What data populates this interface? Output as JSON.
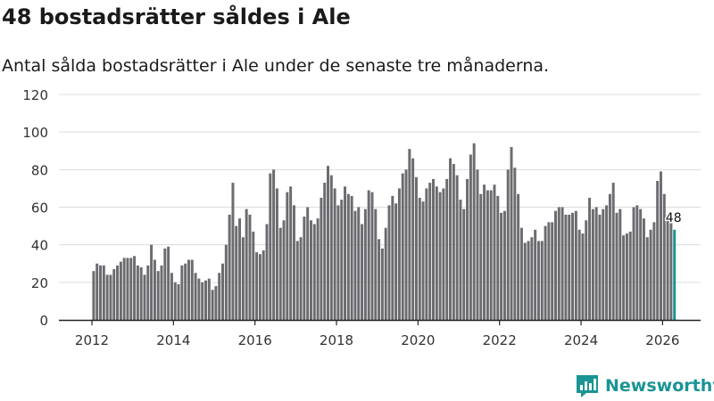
{
  "title": "48 bostadsrätter såldes i Ale",
  "subtitle": "Antal sålda bostadsrätter i Ale under de senaste tre månaderna.",
  "brand": {
    "name": "Newsworthy",
    "icon": "newsworthy-logo-icon",
    "color": "#1b9494"
  },
  "colors": {
    "bar": "#6b6b70",
    "highlight": "#1b9494",
    "grid": "#dcdcdc",
    "axis": "#222222",
    "text": "#333333"
  },
  "chart_data": {
    "type": "bar",
    "title": "48 bostadsrätter såldes i Ale",
    "xlabel": "",
    "ylabel": "",
    "ylim": [
      0,
      120
    ],
    "yticks": [
      0,
      20,
      40,
      60,
      80,
      100,
      120
    ],
    "xticks": [
      2012,
      2014,
      2016,
      2018,
      2020,
      2022,
      2024,
      2026
    ],
    "start": {
      "year": 2012,
      "month": 1
    },
    "frequency": "monthly",
    "highlight_label": "48",
    "grid": true,
    "legend": "none",
    "values": [
      26,
      30,
      29,
      29,
      24,
      24,
      27,
      29,
      31,
      33,
      33,
      33,
      34,
      29,
      28,
      24,
      29,
      40,
      32,
      26,
      29,
      38,
      39,
      25,
      20,
      19,
      29,
      30,
      32,
      32,
      25,
      22,
      20,
      21,
      22,
      16,
      18,
      25,
      30,
      40,
      56,
      73,
      50,
      54,
      44,
      59,
      56,
      47,
      36,
      35,
      37,
      51,
      78,
      80,
      70,
      49,
      53,
      68,
      71,
      61,
      42,
      44,
      55,
      60,
      53,
      51,
      54,
      65,
      73,
      82,
      77,
      70,
      61,
      64,
      71,
      67,
      66,
      58,
      60,
      51,
      59,
      69,
      68,
      59,
      43,
      38,
      49,
      61,
      66,
      62,
      70,
      78,
      80,
      91,
      86,
      76,
      65,
      63,
      70,
      73,
      75,
      71,
      68,
      70,
      75,
      86,
      83,
      77,
      64,
      59,
      75,
      88,
      94,
      80,
      67,
      72,
      69,
      69,
      72,
      66,
      57,
      58,
      80,
      92,
      81,
      67,
      49,
      41,
      42,
      44,
      48,
      42,
      42,
      50,
      52,
      52,
      58,
      60,
      60,
      56,
      56,
      57,
      58,
      48,
      46,
      53,
      65,
      59,
      60,
      56,
      59,
      61,
      67,
      73,
      57,
      59,
      45,
      46,
      47,
      60,
      61,
      59,
      54,
      44,
      48,
      52,
      74,
      79,
      67,
      56,
      55,
      48
    ]
  }
}
